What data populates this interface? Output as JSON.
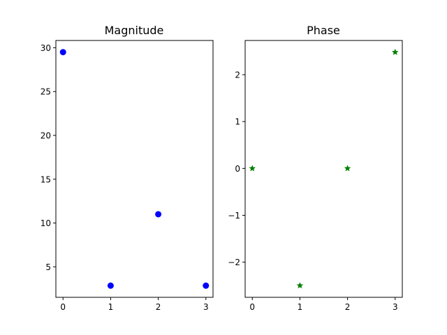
{
  "chart_data": [
    {
      "type": "scatter",
      "title": "Magnitude",
      "xlabel": "",
      "ylabel": "",
      "x": [
        0,
        1,
        2,
        3
      ],
      "y": [
        29.5,
        2.85,
        11.0,
        2.85
      ],
      "xlim": [
        -0.15,
        3.15
      ],
      "ylim": [
        1.52,
        30.83
      ],
      "xticks": [
        0,
        1,
        2,
        3
      ],
      "xtick_labels": [
        "0",
        "1",
        "2",
        "3"
      ],
      "yticks": [
        5,
        10,
        15,
        20,
        25,
        30
      ],
      "ytick_labels": [
        "5",
        "10",
        "15",
        "20",
        "25",
        "30"
      ],
      "marker": "circle",
      "color": "#0000ff",
      "grid": false,
      "legend": "none"
    },
    {
      "type": "scatter",
      "title": "Phase",
      "xlabel": "",
      "ylabel": "",
      "x": [
        0,
        1,
        2,
        3
      ],
      "y": [
        0,
        -2.5,
        0,
        2.48
      ],
      "xlim": [
        -0.15,
        3.15
      ],
      "ylim": [
        -2.75,
        2.73
      ],
      "xticks": [
        0,
        1,
        2,
        3
      ],
      "xtick_labels": [
        "0",
        "1",
        "2",
        "3"
      ],
      "yticks": [
        -2,
        -1,
        0,
        1,
        2
      ],
      "ytick_labels": [
        "−2",
        "−1",
        "0",
        "1",
        "2"
      ],
      "marker": "star",
      "color": "#008000",
      "grid": false,
      "legend": "none"
    }
  ]
}
